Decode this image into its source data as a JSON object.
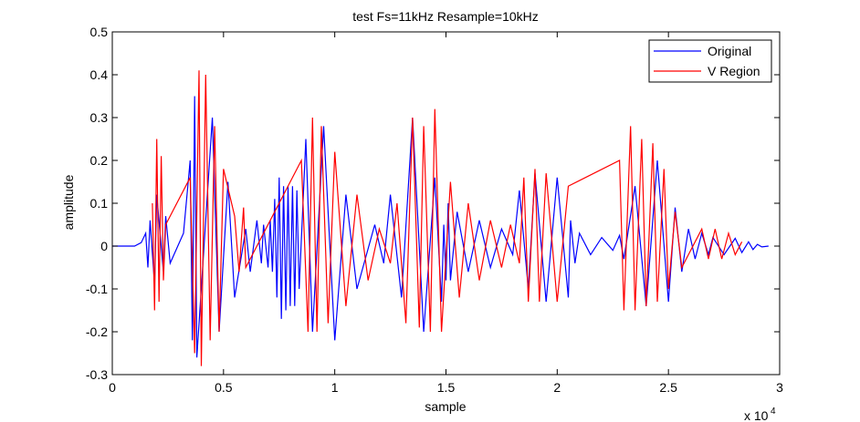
{
  "chart_data": {
    "type": "line",
    "title": "test  Fs=11kHz  Resample=10kHz",
    "xlabel": "sample",
    "ylabel": "amplitude",
    "x_exponent_label": "x 10",
    "x_exponent_power": "4",
    "xlim": [
      0,
      30000
    ],
    "ylim": [
      -0.3,
      0.5
    ],
    "x_ticks": [
      0,
      5000,
      10000,
      15000,
      20000,
      25000,
      30000
    ],
    "x_tick_labels": [
      "0",
      "0.5",
      "1",
      "1.5",
      "2",
      "2.5",
      "3"
    ],
    "y_ticks": [
      -0.3,
      -0.2,
      -0.1,
      0,
      0.1,
      0.2,
      0.3,
      0.4,
      0.5
    ],
    "y_tick_labels": [
      "-0.3",
      "-0.2",
      "-0.1",
      "0",
      "0.1",
      "0.2",
      "0.3",
      "0.4",
      "0.5"
    ],
    "grid": false,
    "legend_position": "top-right",
    "series": [
      {
        "name": "Original",
        "color": "#0000ff",
        "x": [
          0,
          1000,
          1300,
          1500,
          1600,
          1700,
          1900,
          2000,
          2300,
          2400,
          2600,
          3200,
          3500,
          3600,
          3700,
          3800,
          4500,
          4800,
          5200,
          5500,
          6000,
          6200,
          6500,
          6700,
          6800,
          7000,
          7100,
          7200,
          7300,
          7400,
          7500,
          7600,
          7700,
          7800,
          7900,
          8000,
          8100,
          8200,
          8300,
          8400,
          8700,
          9000,
          9500,
          10000,
          10500,
          11000,
          11800,
          12200,
          12500,
          13000,
          13500,
          14000,
          14500,
          14800,
          14900,
          15000,
          15100,
          15200,
          15500,
          16000,
          16500,
          17000,
          17500,
          18000,
          18300,
          18700,
          19000,
          19500,
          20000,
          20500,
          20600,
          20800,
          21000,
          21500,
          22000,
          22500,
          22800,
          23000,
          23500,
          24000,
          24500,
          25000,
          25300,
          25600,
          25900,
          26200,
          26500,
          26800,
          27000,
          27500,
          28000,
          28300,
          28600,
          28800,
          29000,
          29200,
          29500
        ],
        "y": [
          0,
          0,
          0.008,
          0.03,
          -0.05,
          0.06,
          -0.09,
          0.12,
          -0.06,
          0.07,
          -0.04,
          0.03,
          0.2,
          -0.22,
          0.35,
          -0.26,
          0.3,
          -0.2,
          0.15,
          -0.12,
          0.04,
          -0.06,
          0.06,
          -0.04,
          0.05,
          -0.05,
          0.06,
          -0.06,
          0.11,
          -0.12,
          0.16,
          -0.17,
          0.14,
          -0.15,
          0.14,
          -0.14,
          0.14,
          -0.14,
          0.13,
          -0.1,
          0.25,
          -0.2,
          0.28,
          -0.22,
          0.12,
          -0.1,
          0.05,
          -0.04,
          0.12,
          -0.12,
          0.3,
          -0.2,
          0.16,
          -0.13,
          0.05,
          -0.08,
          0.1,
          -0.08,
          0.08,
          -0.06,
          0.06,
          -0.05,
          0.04,
          -0.02,
          0.13,
          -0.1,
          0.17,
          -0.13,
          0.16,
          -0.12,
          0.06,
          -0.04,
          0.03,
          -0.02,
          0.02,
          -0.01,
          0.025,
          -0.03,
          0.14,
          -0.14,
          0.2,
          -0.13,
          0.09,
          -0.06,
          0.04,
          -0.03,
          0.03,
          -0.02,
          0.02,
          -0.02,
          0.018,
          -0.015,
          0.01,
          -0.008,
          0.004,
          -0.002,
          0
        ]
      },
      {
        "name": "V Region",
        "color": "#ff0000",
        "x": [
          1800,
          1900,
          2000,
          2100,
          2200,
          2300,
          2400,
          3500,
          3700,
          3900,
          4000,
          4200,
          4400,
          4600,
          4800,
          5000,
          5500,
          5700,
          5900,
          6000,
          8500,
          8800,
          9000,
          9200,
          9400,
          9700,
          10000,
          10500,
          11000,
          11500,
          12000,
          12500,
          12800,
          13200,
          13500,
          13800,
          14000,
          14300,
          14500,
          14800,
          15200,
          15600,
          16000,
          16500,
          17000,
          17500,
          17900,
          18300,
          18500,
          18700,
          19000,
          19200,
          19500,
          20000,
          20500,
          22800,
          23000,
          23300,
          23500,
          23800,
          24000,
          24300,
          24500,
          24800,
          25000,
          25300,
          25600,
          26500,
          26800,
          27100,
          27400,
          27700,
          28000,
          28300
        ],
        "y": [
          0.1,
          -0.15,
          0.25,
          -0.13,
          0.21,
          -0.08,
          0.05,
          0.16,
          -0.25,
          0.41,
          -0.28,
          0.4,
          -0.22,
          0.28,
          -0.2,
          0.18,
          0.07,
          -0.06,
          0.09,
          -0.05,
          0.2,
          -0.2,
          0.3,
          -0.2,
          0.28,
          -0.18,
          0.22,
          -0.14,
          0.12,
          -0.08,
          0.04,
          -0.04,
          0.1,
          -0.18,
          0.3,
          -0.19,
          0.28,
          -0.2,
          0.32,
          -0.2,
          0.15,
          -0.12,
          0.1,
          -0.08,
          0.06,
          -0.05,
          0.05,
          -0.04,
          0.16,
          -0.13,
          0.18,
          -0.13,
          0.17,
          -0.13,
          0.14,
          0.2,
          -0.15,
          0.28,
          -0.15,
          0.25,
          -0.14,
          0.24,
          -0.13,
          0.18,
          -0.1,
          0.08,
          -0.05,
          0.04,
          -0.03,
          0.04,
          -0.03,
          0.03,
          -0.02,
          0.01
        ]
      }
    ]
  }
}
